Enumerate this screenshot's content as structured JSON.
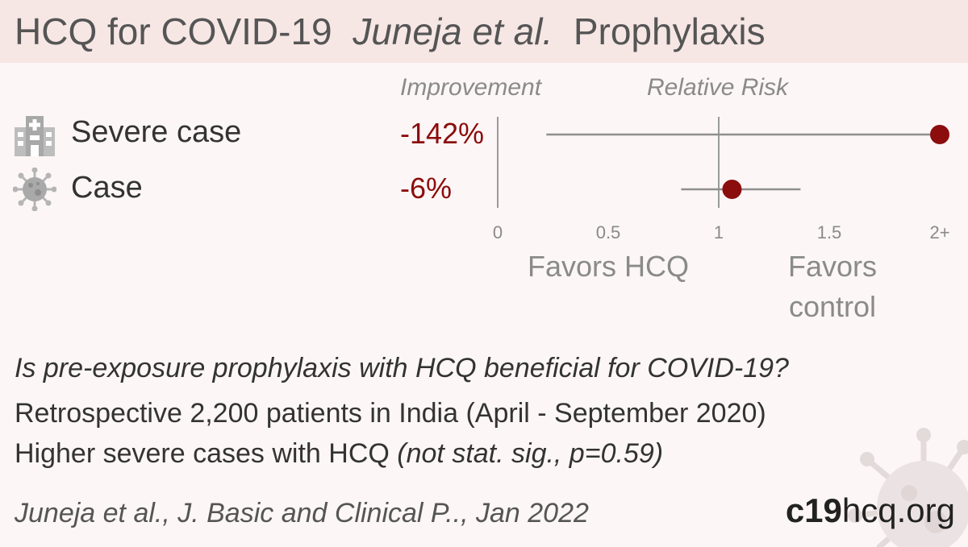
{
  "header": {
    "title_main": "HCQ for COVID-19",
    "title_study": "Juneja et al.",
    "title_topic": "Prophylaxis",
    "background_color": "#f6e7e5"
  },
  "columns": {
    "improvement": "Improvement",
    "relative_risk": "Relative Risk"
  },
  "chart_data": {
    "type": "forest",
    "xlim": [
      0,
      2
    ],
    "reference_line": 1,
    "x_ticks": [
      {
        "value": 0,
        "label": "0"
      },
      {
        "value": 0.5,
        "label": "0.5"
      },
      {
        "value": 1,
        "label": "1"
      },
      {
        "value": 1.5,
        "label": "1.5"
      },
      {
        "value": 2,
        "label": "2+"
      }
    ],
    "rows": [
      {
        "label": "Severe case",
        "icon": "hospital-icon",
        "improvement": "-142%",
        "rr": 2.42,
        "ci_low": 0.22,
        "ci_high": 2.42
      },
      {
        "label": "Case",
        "icon": "virus-icon",
        "improvement": "-6%",
        "rr": 1.06,
        "ci_low": 0.83,
        "ci_high": 1.37
      }
    ],
    "favors_left": "Favors HCQ",
    "favors_right": "Favors control",
    "marker_color": "#8b0d0d"
  },
  "summary": {
    "question": "Is pre-exposure prophylaxis with HCQ beneficial for COVID-19?",
    "design": "Retrospective 2,200 patients in India (April - September 2020)",
    "result_main": "Higher severe cases with HCQ ",
    "result_note": "(not stat. sig., p=0.59)"
  },
  "citation": "Juneja et al., J. Basic and Clinical P.., Jan 2022",
  "brand": {
    "bold": "c19",
    "rest": "hcq.org"
  }
}
